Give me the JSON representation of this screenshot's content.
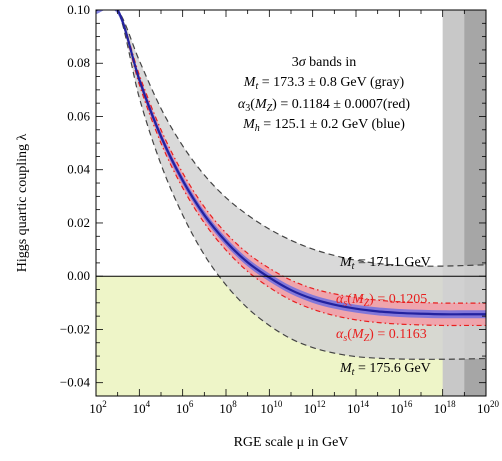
{
  "chart_data": {
    "type": "line",
    "xlabel": "RGE scale μ in GeV",
    "ylabel": "Higgs quartic coupling λ",
    "x_scale": "log10",
    "xlim": [
      100,
      1e+20
    ],
    "ylim": [
      -0.045,
      0.1
    ],
    "x_ticks": [
      {
        "value": 100.0,
        "base": "10",
        "exp": "2"
      },
      {
        "value": 10000.0,
        "base": "10",
        "exp": "4"
      },
      {
        "value": 1000000.0,
        "base": "10",
        "exp": "6"
      },
      {
        "value": 100000000.0,
        "base": "10",
        "exp": "8"
      },
      {
        "value": 10000000000.0,
        "base": "10",
        "exp": "10"
      },
      {
        "value": 1000000000000.0,
        "base": "10",
        "exp": "12"
      },
      {
        "value": 100000000000000.0,
        "base": "10",
        "exp": "14"
      },
      {
        "value": 1e+16,
        "base": "10",
        "exp": "16"
      },
      {
        "value": 1e+18,
        "base": "10",
        "exp": "18"
      },
      {
        "value": 1e+20,
        "base": "10",
        "exp": "20"
      }
    ],
    "y_ticks": [
      {
        "value": 0.1,
        "label": "0.10"
      },
      {
        "value": 0.08,
        "label": "0.08"
      },
      {
        "value": 0.06,
        "label": "0.06"
      },
      {
        "value": 0.04,
        "label": "0.04"
      },
      {
        "value": 0.02,
        "label": "0.02"
      },
      {
        "value": 0.0,
        "label": "0.00"
      },
      {
        "value": -0.02,
        "label": "−0.02"
      },
      {
        "value": -0.04,
        "label": "−0.04"
      }
    ],
    "x": [
      100.0,
      1000.0,
      10000.0,
      100000.0,
      1000000.0,
      10000000.0,
      100000000.0,
      1000000000.0,
      10000000000.0,
      100000000000.0,
      1000000000000.0,
      10000000000000.0,
      100000000000000.0,
      1000000000000000.0,
      1e+16,
      1e+17,
      1e+18,
      1e+19,
      1e+20
    ],
    "series": [
      {
        "role": "central",
        "color": "#2b2bb5",
        "values": [
          0.1,
          0.1,
          0.0738,
          0.0525,
          0.036,
          0.023,
          0.013,
          0.0052,
          -0.0005,
          -0.0052,
          -0.0085,
          -0.0107,
          -0.0122,
          -0.0132,
          -0.0138,
          -0.0141,
          -0.0143,
          -0.0143,
          -0.0143
        ]
      },
      {
        "role": "top-quark-low",
        "color": "#444444",
        "label": "M_t = 171.1 GeV",
        "values": [
          0.1,
          0.1,
          0.081,
          0.063,
          0.049,
          0.038,
          0.0295,
          0.023,
          0.0177,
          0.0135,
          0.0102,
          0.0078,
          0.006,
          0.0048,
          0.0041,
          0.0038,
          0.0038,
          0.004,
          0.0043
        ]
      },
      {
        "role": "top-quark-high",
        "color": "#444444",
        "label": "M_t = 175.6 GeV",
        "values": [
          0.1,
          0.1,
          0.067,
          0.042,
          0.023,
          0.008,
          -0.0033,
          -0.012,
          -0.0185,
          -0.0235,
          -0.0268,
          -0.0289,
          -0.0302,
          -0.0308,
          -0.0311,
          -0.0312,
          -0.0312,
          -0.0311,
          -0.0309
        ]
      },
      {
        "role": "alpha-s-high",
        "color": "#e8201f",
        "label": "α_s(M_Z) = 0.1205",
        "values": [
          0.1,
          0.1,
          0.072,
          0.05,
          0.0332,
          0.02,
          0.0098,
          0.0018,
          -0.0042,
          -0.009,
          -0.0124,
          -0.0148,
          -0.0164,
          -0.0174,
          -0.018,
          -0.0183,
          -0.0185,
          -0.0185,
          -0.0185
        ]
      },
      {
        "role": "alpha-s-low",
        "color": "#e8201f",
        "label": "α_s(M_Z) = 0.1163",
        "values": [
          0.1,
          0.1,
          0.0756,
          0.055,
          0.0388,
          0.026,
          0.0162,
          0.0086,
          0.003,
          -0.0015,
          -0.0046,
          -0.0066,
          -0.008,
          -0.009,
          -0.0096,
          -0.0099,
          -0.0101,
          -0.0101,
          -0.0101
        ]
      }
    ],
    "vertical_bands": [
      {
        "x_from": 1e+18,
        "x_to": 1e+20,
        "color": "#c8c8c8"
      },
      {
        "x_from": 1e+19,
        "x_to": 1e+20,
        "color": "#a6a6a6"
      }
    ],
    "instability_region_color": "#eef5c8",
    "annotation": {
      "title_pre": "3",
      "title_sym": "σ",
      "title_post": " bands in",
      "line1": "Mt = 173.3 ± 0.8 GeV (gray)",
      "line2": "α3(MZ) = 0.1184 ± 0.0007(red)",
      "line3": "Mh = 125.1 ± 0.2 GeV (blue)"
    },
    "band_labels": {
      "mt_low": "Mt = 171.1 GeV",
      "mt_high": "Mt = 175.6 GeV",
      "as_high": "αs(MZ) = 0.1205",
      "as_low": "αs(MZ) = 0.1163"
    },
    "grid": false,
    "legend": "none"
  }
}
